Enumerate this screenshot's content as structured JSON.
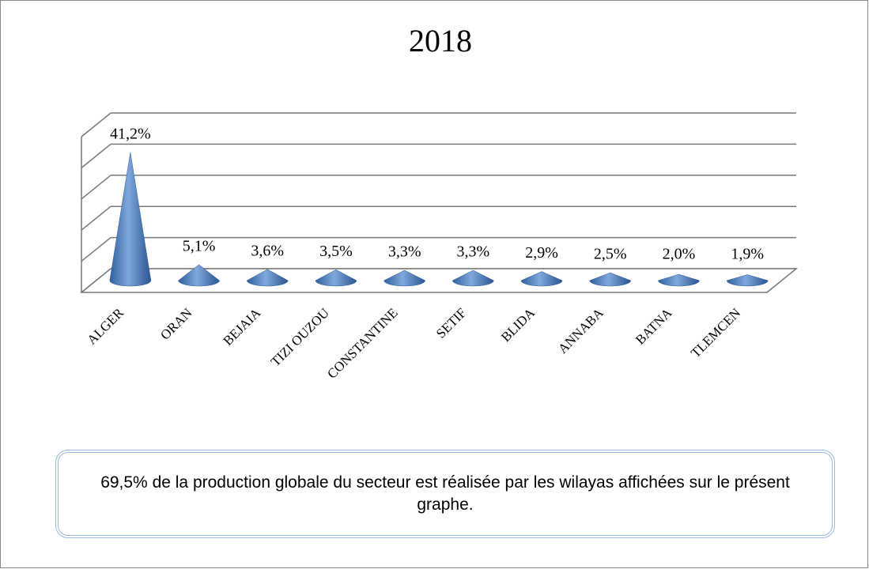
{
  "chart_data": {
    "type": "cone",
    "title": "2018",
    "categories": [
      "ALGER",
      "ORAN",
      "BEJAIA",
      "TIZI OUZOU",
      "CONSTANTINE",
      "SETIF",
      "BLIDA",
      "ANNABA",
      "BATNA",
      "TLEMCEN"
    ],
    "values": [
      41.2,
      5.1,
      3.6,
      3.5,
      3.3,
      3.3,
      2.9,
      2.5,
      2.0,
      1.9
    ],
    "value_labels": [
      "41,2%",
      "5,1%",
      "3,6%",
      "3,5%",
      "3,3%",
      "3,3%",
      "2,9%",
      "2,5%",
      "2,0%",
      "1,9%"
    ],
    "color": "#4f81bd",
    "ylim": [
      0,
      50
    ],
    "yticks": [
      0,
      10,
      20,
      30,
      40,
      50
    ],
    "grid": true,
    "annotation": "69,5% de la production globale du secteur est réalisée par les wilayas affichées sur le présent graphe."
  }
}
